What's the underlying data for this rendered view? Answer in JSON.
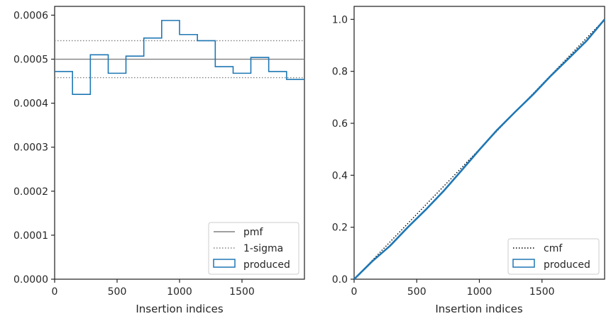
{
  "chart_data": [
    {
      "type": "histogram",
      "xlabel": "Insertion indices",
      "ylabel": "",
      "xlim": [
        0,
        2000
      ],
      "ylim": [
        0,
        0.00062
      ],
      "xticks": [
        0,
        500,
        1000,
        1500
      ],
      "xtick_labels": [
        "0",
        "500",
        "1000",
        "1500"
      ],
      "yticks": [
        0,
        0.0001,
        0.0002,
        0.0003,
        0.0004,
        0.0005,
        0.0006
      ],
      "ytick_labels": [
        "0.0000",
        "0.0001",
        "0.0002",
        "0.0003",
        "0.0004",
        "0.0005",
        "0.0006"
      ],
      "grid": false,
      "legend_position": "lower-right",
      "bin_edges": [
        0,
        143,
        286,
        429,
        571,
        714,
        857,
        1000,
        1143,
        1286,
        1429,
        1571,
        1714,
        1857,
        2000
      ],
      "produced": [
        0.000472,
        0.00042,
        0.00051,
        0.000468,
        0.000507,
        0.000548,
        0.000588,
        0.000556,
        0.000542,
        0.000483,
        0.000468,
        0.000504,
        0.000472,
        0.000454
      ],
      "pmf": 0.0005,
      "sigma_band": [
        0.000458,
        0.000542
      ],
      "legend": [
        {
          "label": "pmf",
          "style": "solid",
          "color": "#808080"
        },
        {
          "label": "1-sigma",
          "style": "dotted",
          "color": "#808080"
        },
        {
          "label": "produced",
          "style": "step",
          "color": "#1f77b4"
        }
      ],
      "colors": {
        "produced": "#1f77b4",
        "reference": "#808080"
      }
    },
    {
      "type": "line",
      "xlabel": "Insertion indices",
      "ylabel": "",
      "xlim": [
        0,
        2000
      ],
      "ylim": [
        0,
        1.05
      ],
      "xticks": [
        0,
        500,
        1000,
        1500
      ],
      "xtick_labels": [
        "0",
        "500",
        "1000",
        "1500"
      ],
      "yticks": [
        0,
        0.2,
        0.4,
        0.6,
        0.8,
        1.0
      ],
      "ytick_labels": [
        "0.0",
        "0.2",
        "0.4",
        "0.6",
        "0.8",
        "1.0"
      ],
      "grid": false,
      "legend_position": "lower-right",
      "cmf": {
        "x": [
          0,
          2000
        ],
        "y": [
          0,
          1.0
        ]
      },
      "produced": {
        "x": [
          0,
          143,
          286,
          429,
          571,
          714,
          857,
          1000,
          1143,
          1286,
          1429,
          1571,
          1714,
          1857,
          2000
        ],
        "y": [
          0,
          0.068,
          0.128,
          0.2,
          0.267,
          0.339,
          0.418,
          0.498,
          0.575,
          0.644,
          0.711,
          0.783,
          0.85,
          0.918,
          1.0
        ]
      },
      "legend": [
        {
          "label": "cmf",
          "style": "dotted",
          "color": "#000000"
        },
        {
          "label": "produced",
          "style": "step",
          "color": "#1f77b4"
        }
      ],
      "colors": {
        "produced": "#1f77b4",
        "reference": "#000000"
      }
    }
  ]
}
